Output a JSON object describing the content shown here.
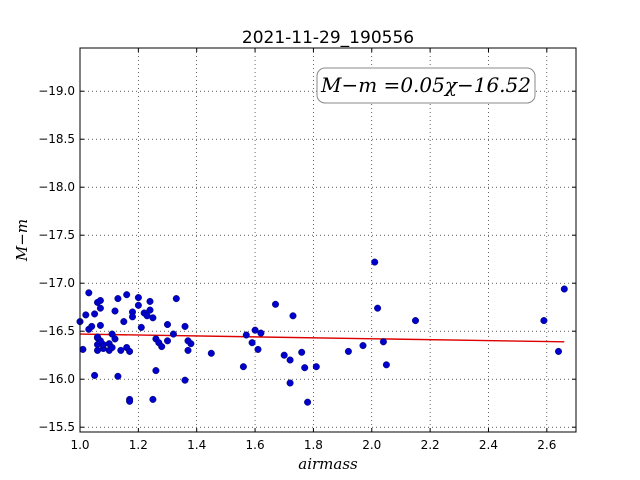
{
  "chart_data": {
    "type": "scatter",
    "title": "2021-11-29_190556",
    "xlabel": "airmass",
    "ylabel": "M−m",
    "xlim": [
      1.0,
      2.7
    ],
    "ylim": [
      -19.45,
      -15.45
    ],
    "y_inverted": true,
    "x_ticks": [
      1.0,
      1.2,
      1.4,
      1.6,
      1.8,
      2.0,
      2.2,
      2.4,
      2.6
    ],
    "x_tick_labels": [
      "1.0",
      "1.2",
      "1.4",
      "1.6",
      "1.8",
      "2.0",
      "2.2",
      "2.4",
      "2.6"
    ],
    "y_ticks": [
      -15.5,
      -16.0,
      -16.5,
      -17.0,
      -17.5,
      -18.0,
      -18.5,
      -19.0
    ],
    "y_tick_labels": [
      "−15.5",
      "−16.0",
      "−16.5",
      "−17.0",
      "−17.5",
      "−18.0",
      "−18.5",
      "−19.0"
    ],
    "grid": true,
    "annotation": "M−m =0.05χ−16.52",
    "colors": {
      "points": "#0000cc",
      "fit": "#dd0000"
    },
    "series": [
      {
        "kind": "points",
        "x": [
          1.0,
          1.01,
          1.02,
          1.03,
          1.03,
          1.04,
          1.05,
          1.05,
          1.06,
          1.06,
          1.06,
          1.06,
          1.07,
          1.07,
          1.07,
          1.08,
          1.08,
          1.07,
          1.06,
          1.1,
          1.1,
          1.11,
          1.11,
          1.12,
          1.12,
          1.13,
          1.13,
          1.14,
          1.15,
          1.16,
          1.16,
          1.17,
          1.17,
          1.17,
          1.18,
          1.18,
          1.2,
          1.2,
          1.21,
          1.22,
          1.23,
          1.24,
          1.24,
          1.25,
          1.25,
          1.26,
          1.26,
          1.27,
          1.28,
          1.3,
          1.3,
          1.32,
          1.33,
          1.36,
          1.36,
          1.37,
          1.38,
          1.37,
          1.45,
          1.56,
          1.57,
          1.59,
          1.6,
          1.61,
          1.62,
          1.67,
          1.7,
          1.72,
          1.72,
          1.73,
          1.76,
          1.77,
          1.78,
          1.81,
          1.92,
          1.97,
          2.01,
          2.02,
          2.04,
          2.05,
          2.15,
          2.59,
          2.64,
          2.66
        ],
        "y": [
          -16.6,
          -16.31,
          -16.67,
          -16.9,
          -16.52,
          -16.55,
          -16.04,
          -16.68,
          -16.8,
          -16.3,
          -16.36,
          -16.43,
          -16.74,
          -16.56,
          -16.82,
          -16.32,
          -16.36,
          -16.4,
          -16.44,
          -16.3,
          -16.37,
          -16.33,
          -16.47,
          -16.42,
          -16.71,
          -16.84,
          -16.03,
          -16.3,
          -16.6,
          -16.33,
          -16.88,
          -16.29,
          -15.79,
          -15.77,
          -16.7,
          -16.65,
          -16.85,
          -16.77,
          -16.54,
          -16.69,
          -16.66,
          -16.72,
          -16.81,
          -15.79,
          -16.64,
          -16.09,
          -16.42,
          -16.38,
          -16.34,
          -16.57,
          -16.4,
          -16.47,
          -16.84,
          -15.99,
          -16.55,
          -16.3,
          -16.37,
          -16.4,
          -16.27,
          -16.13,
          -16.46,
          -16.38,
          -16.51,
          -16.31,
          -16.48,
          -16.78,
          -16.25,
          -15.96,
          -16.2,
          -16.66,
          -16.28,
          -16.12,
          -15.76,
          -16.13,
          -16.29,
          -16.35,
          -17.22,
          -16.74,
          -16.39,
          -16.15,
          -16.61,
          -16.61,
          -16.29,
          -16.94
        ]
      },
      {
        "kind": "fit-line",
        "x": [
          1.0,
          2.66
        ],
        "y": [
          -16.47,
          -16.39
        ]
      }
    ]
  }
}
